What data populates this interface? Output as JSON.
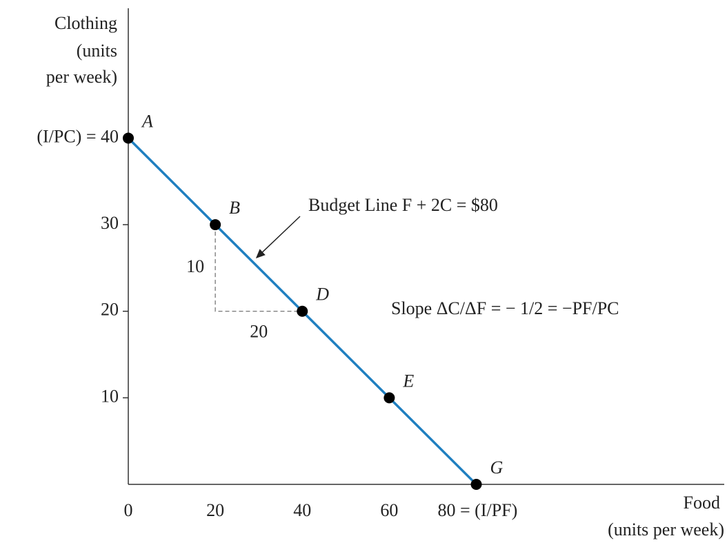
{
  "chart_data": {
    "type": "line",
    "y_label": [
      "Clothing",
      "(units",
      "per week)"
    ],
    "x_label": [
      "Food",
      "(units per week)"
    ],
    "x": [
      0,
      20,
      40,
      60,
      80
    ],
    "values": [
      40,
      30,
      20,
      10,
      0
    ],
    "point_labels": [
      "A",
      "B",
      "D",
      "E",
      "G"
    ],
    "color": "#1f7fc0",
    "xlim": [
      0,
      137
    ],
    "ylim": [
      0,
      55
    ],
    "xticks": [
      0,
      20,
      40,
      60,
      {
        "value": 80,
        "label": "80 = (I/PF)"
      }
    ],
    "yticks": [
      10,
      20,
      30,
      {
        "value": 40,
        "label": "(I/PC) = 40"
      }
    ],
    "annotations": {
      "budget_line": "Budget Line  F + 2C =  $80",
      "slope": "Slope  ΔC/ΔF = − 1/2 = −PF/PC",
      "rise": "10",
      "run": "20"
    }
  }
}
